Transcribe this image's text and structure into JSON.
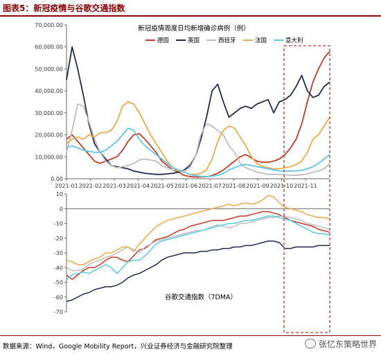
{
  "figure": {
    "title": "图表5：新冠疫情与谷歌交通指数",
    "source": "数据来源：Wind，Google Mobility Report，兴业证券经济与金融研究院整理",
    "watermark": "张忆东策略世界"
  },
  "colors": {
    "germany": "#c0392b",
    "uk": "#1f2a4d",
    "spain": "#bdbdbd",
    "france": "#f0a848",
    "italy": "#5bc8e0",
    "highlight": "#c0392b"
  },
  "chart_data": [
    {
      "type": "line",
      "title": "新冠疫情周度日均新增确诊病例（例）",
      "x_ticks": [
        "2021-01",
        "2021-02",
        "2021-03",
        "2021-04",
        "2021-05",
        "2021-06",
        "2021-07",
        "2021-08",
        "2021-09",
        "2021-10",
        "2021-11"
      ],
      "ylim": [
        0,
        70000
      ],
      "y_ticks": [
        "0.00",
        "10,000.00",
        "20,000.00",
        "30,000.00",
        "40,000.00",
        "50,000.00",
        "60,000.00",
        "70,000.00"
      ],
      "x_week": [
        0,
        1,
        2,
        3,
        4,
        5,
        6,
        7,
        8,
        9,
        10,
        11,
        12,
        13,
        14,
        15,
        16,
        17,
        18,
        19,
        20,
        21,
        22,
        23,
        24,
        25,
        26,
        27,
        28,
        29,
        30,
        31,
        32,
        33,
        34,
        35,
        36,
        37,
        38,
        39,
        40,
        41,
        42,
        43,
        44,
        45,
        46,
        47
      ],
      "series": [
        {
          "name": "德国",
          "color_key": "germany",
          "values": [
            18000,
            20000,
            17000,
            14000,
            11000,
            8000,
            7000,
            8000,
            9000,
            10000,
            13000,
            17000,
            20000,
            20500,
            18000,
            15000,
            12000,
            8000,
            6000,
            4000,
            3000,
            1500,
            1000,
            800,
            800,
            900,
            1500,
            2500,
            4000,
            6000,
            8000,
            10000,
            11000,
            9500,
            8000,
            7500,
            7500,
            8000,
            9000,
            11000,
            14000,
            18000,
            25000,
            35000,
            44000,
            50000,
            55000,
            58000
          ]
        },
        {
          "name": "英国",
          "color_key": "uk",
          "values": [
            45000,
            60000,
            50000,
            38000,
            25000,
            16000,
            12000,
            9000,
            6000,
            5500,
            5000,
            4500,
            3500,
            3000,
            2500,
            2200,
            2000,
            2000,
            2200,
            2500,
            3000,
            4000,
            6000,
            10000,
            18000,
            28000,
            40000,
            43000,
            35000,
            28000,
            30000,
            32000,
            33000,
            32000,
            34000,
            35000,
            36000,
            30000,
            35000,
            36000,
            38000,
            42000,
            47000,
            40000,
            37000,
            38000,
            42000,
            44000
          ]
        },
        {
          "name": "西班牙",
          "color_key": "spain",
          "values": [
            12000,
            22000,
            34000,
            33000,
            26000,
            18000,
            12000,
            8000,
            6000,
            5000,
            5500,
            6000,
            7000,
            8500,
            9000,
            8500,
            8000,
            6000,
            5000,
            4000,
            4000,
            3500,
            5000,
            10000,
            20000,
            25000,
            24000,
            22000,
            20000,
            15000,
            12000,
            7000,
            5000,
            4000,
            3000,
            2500,
            2000,
            2000,
            2000,
            1800,
            1600,
            1500,
            1800,
            2200,
            3000,
            3500,
            4500,
            7000
          ]
        },
        {
          "name": "法国",
          "color_key": "france",
          "values": [
            16000,
            18000,
            19000,
            18000,
            20000,
            19000,
            21000,
            21000,
            22000,
            26000,
            33000,
            35000,
            34000,
            30000,
            25000,
            20000,
            16000,
            12000,
            8000,
            5000,
            3500,
            3000,
            2000,
            2000,
            2500,
            4000,
            9000,
            17000,
            22000,
            24000,
            23000,
            19000,
            15000,
            10000,
            7000,
            5500,
            5000,
            4500,
            4500,
            5000,
            5500,
            6500,
            8000,
            12000,
            18000,
            20000,
            24000,
            28000
          ]
        },
        {
          "name": "意大利",
          "color_key": "italy",
          "values": [
            14000,
            15000,
            14000,
            13000,
            12500,
            12000,
            12000,
            13000,
            15000,
            17000,
            20000,
            23000,
            22000,
            18000,
            15000,
            13000,
            11000,
            9000,
            7000,
            5000,
            4000,
            3000,
            2000,
            1500,
            1000,
            1000,
            1200,
            1500,
            2500,
            4000,
            5000,
            6000,
            6500,
            6000,
            5500,
            5000,
            4500,
            4000,
            3500,
            3500,
            3500,
            3500,
            3800,
            4500,
            5500,
            7000,
            9000,
            11000
          ]
        }
      ],
      "legend": "top-right"
    },
    {
      "type": "line",
      "title": "谷歌交通指数（7DMA）",
      "ylim": [
        -70,
        10
      ],
      "y_ticks": [
        "10",
        "0",
        "-10",
        "-20",
        "-30",
        "-40",
        "-50",
        "-60",
        "-70"
      ],
      "x_week": [
        0,
        1,
        2,
        3,
        4,
        5,
        6,
        7,
        8,
        9,
        10,
        11,
        12,
        13,
        14,
        15,
        16,
        17,
        18,
        19,
        20,
        21,
        22,
        23,
        24,
        25,
        26,
        27,
        28,
        29,
        30,
        31,
        32,
        33,
        34,
        35,
        36,
        37,
        38,
        39,
        40,
        41,
        42,
        43,
        44,
        45,
        46,
        47
      ],
      "series": [
        {
          "name": "德国",
          "color_key": "germany",
          "values": [
            -45,
            -48,
            -45,
            -42,
            -40,
            -40,
            -38,
            -35,
            -33,
            -33,
            -35,
            -36,
            -32,
            -28,
            -27,
            -24,
            -21,
            -20,
            -19,
            -17,
            -15,
            -14,
            -12,
            -11,
            -10,
            -9,
            -8,
            -8,
            -8,
            -7,
            -6,
            -5,
            -5,
            -4,
            -3,
            -2,
            -2,
            -3,
            -4,
            -6,
            -8,
            -9,
            -10,
            -11,
            -12,
            -14,
            -15,
            -16
          ]
        },
        {
          "name": "英国",
          "color_key": "uk",
          "values": [
            -63,
            -62,
            -60,
            -58,
            -57,
            -55,
            -54,
            -53,
            -53,
            -52,
            -50,
            -47,
            -45,
            -44,
            -42,
            -40,
            -38,
            -35,
            -33,
            -32,
            -31,
            -30,
            -30,
            -30,
            -29,
            -29,
            -28,
            -28,
            -27,
            -27,
            -26,
            -26,
            -25,
            -25,
            -24,
            -23,
            -22,
            -22,
            -23,
            -27,
            -27,
            -26,
            -26,
            -26,
            -26,
            -25,
            -25,
            -25
          ]
        },
        {
          "name": "西班牙",
          "color_key": "spain",
          "values": [
            -40,
            -42,
            -42,
            -41,
            -38,
            -36,
            -35,
            -33,
            -32,
            -30,
            -28,
            -26,
            -28,
            -30,
            -26,
            -24,
            -22,
            -21,
            -20,
            -19,
            -18,
            -17,
            -16,
            -15,
            -15,
            -14,
            -12,
            -11,
            -12,
            -13,
            -12,
            -10,
            -10,
            -9,
            -8,
            -7,
            -6,
            -6,
            -5,
            -5,
            -6,
            -7,
            -8,
            -10,
            -11,
            -12,
            -13,
            -14
          ]
        },
        {
          "name": "法国",
          "color_key": "france",
          "values": [
            -35,
            -36,
            -38,
            -38,
            -36,
            -34,
            -33,
            -30,
            -30,
            -28,
            -26,
            -26,
            -29,
            -24,
            -20,
            -16,
            -12,
            -10,
            -8,
            -7,
            -6,
            -5,
            -4,
            -3,
            -2,
            -1,
            0,
            1,
            2,
            3,
            2,
            3,
            4,
            3,
            4,
            6,
            9,
            8,
            4,
            1,
            0,
            -1,
            -2,
            -4,
            -5,
            -6,
            -6,
            -7
          ]
        },
        {
          "name": "意大利",
          "color_key": "italy",
          "values": [
            -48,
            -45,
            -44,
            -43,
            -44,
            -42,
            -40,
            -38,
            -40,
            -44,
            -40,
            -36,
            -35,
            -35,
            -32,
            -28,
            -24,
            -22,
            -21,
            -20,
            -19,
            -18,
            -17,
            -16,
            -15,
            -14,
            -13,
            -12,
            -11,
            -10,
            -10,
            -9,
            -8,
            -8,
            -7,
            -6,
            -5,
            -5,
            -6,
            -7,
            -8,
            -10,
            -12,
            -14,
            -16,
            -17,
            -17,
            -18
          ]
        }
      ]
    }
  ]
}
